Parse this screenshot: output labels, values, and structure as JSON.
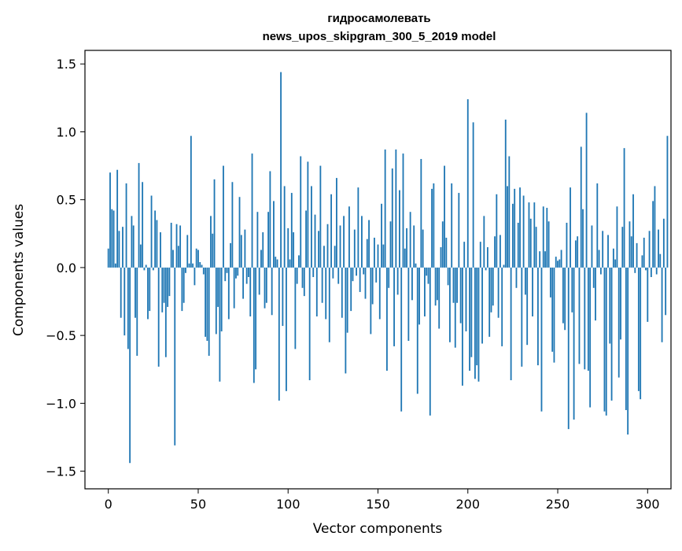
{
  "chart_data": {
    "type": "bar",
    "title_line1": "гидросамолевать",
    "title_line2": "news_upos_skipgram_300_5_2019 model",
    "xlabel": "Vector components",
    "ylabel": "Components values",
    "xlim": [
      -13,
      313
    ],
    "ylim": [
      -1.63,
      1.6
    ],
    "x_ticks": [
      0,
      50,
      100,
      150,
      200,
      250,
      300
    ],
    "x_tick_labels": [
      "0",
      "50",
      "100",
      "150",
      "200",
      "250",
      "300"
    ],
    "y_ticks": [
      -1.5,
      -1.0,
      -0.5,
      0.0,
      0.5,
      1.0,
      1.5
    ],
    "y_tick_labels": [
      "−1.5",
      "−1.0",
      "−0.5",
      "0.0",
      "0.5",
      "1.0",
      "1.5"
    ],
    "bar_color": "#1f77b4",
    "grid": false,
    "values": [
      0.14,
      0.7,
      0.43,
      0.42,
      0.03,
      0.72,
      0.27,
      -0.37,
      0.3,
      -0.5,
      0.62,
      -0.6,
      -1.44,
      0.38,
      0.31,
      -0.37,
      -0.65,
      0.77,
      0.17,
      0.63,
      -0.02,
      0.02,
      -0.38,
      -0.32,
      0.53,
      -0.02,
      0.42,
      0.35,
      -0.73,
      0.26,
      -0.33,
      -0.26,
      -0.66,
      -0.29,
      -0.21,
      0.33,
      0.13,
      -1.31,
      0.32,
      0.16,
      0.31,
      -0.32,
      -0.26,
      -0.04,
      0.24,
      0.03,
      0.97,
      0.03,
      -0.13,
      0.14,
      0.13,
      0.04,
      0.02,
      -0.05,
      -0.51,
      -0.54,
      -0.65,
      0.38,
      0.25,
      0.65,
      -0.49,
      -0.29,
      -0.84,
      -0.47,
      0.75,
      -0.1,
      -0.04,
      -0.38,
      0.18,
      0.63,
      -0.3,
      -0.08,
      -0.06,
      0.52,
      0.24,
      -0.23,
      0.28,
      -0.12,
      -0.07,
      -0.36,
      0.84,
      -0.85,
      -0.75,
      0.41,
      -0.2,
      0.13,
      0.26,
      -0.3,
      -0.26,
      0.41,
      0.71,
      -0.35,
      0.49,
      0.08,
      0.06,
      -0.98,
      1.44,
      -0.43,
      0.6,
      -0.91,
      0.29,
      0.06,
      0.55,
      0.26,
      -0.6,
      -0.12,
      0.09,
      0.82,
      -0.15,
      -0.21,
      0.42,
      0.78,
      -0.83,
      0.6,
      -0.07,
      0.39,
      -0.36,
      0.27,
      0.75,
      -0.26,
      0.16,
      -0.38,
      0.32,
      -0.55,
      0.54,
      -0.08,
      0.16,
      0.66,
      -0.12,
      0.31,
      -0.37,
      0.38,
      -0.78,
      -0.48,
      0.45,
      -0.32,
      -0.1,
      0.28,
      -0.06,
      0.59,
      -0.18,
      0.38,
      -0.05,
      -0.23,
      0.21,
      0.35,
      -0.49,
      -0.27,
      0.22,
      -0.11,
      0.17,
      -0.38,
      0.47,
      0.17,
      0.87,
      -0.76,
      -0.15,
      0.34,
      0.73,
      -0.58,
      0.87,
      -0.2,
      0.57,
      -1.06,
      0.84,
      0.14,
      0.29,
      -0.54,
      0.41,
      -0.24,
      0.31,
      0.03,
      -0.93,
      -0.42,
      0.8,
      0.28,
      -0.36,
      -0.06,
      -0.12,
      -1.09,
      0.58,
      0.62,
      -0.28,
      -0.24,
      -0.45,
      0.15,
      0.34,
      0.75,
      0.22,
      -0.13,
      -0.55,
      0.62,
      -0.26,
      -0.59,
      -0.26,
      0.55,
      -0.41,
      -0.87,
      0.19,
      -0.47,
      1.24,
      -0.76,
      -0.66,
      1.07,
      -0.82,
      -0.72,
      -0.84,
      0.19,
      -0.56,
      0.38,
      -0.02,
      0.15,
      -0.51,
      -0.33,
      -0.28,
      0.23,
      0.54,
      -0.37,
      0.24,
      -0.58,
      0.02,
      1.09,
      0.6,
      0.82,
      -0.83,
      0.47,
      0.58,
      -0.15,
      0.33,
      0.59,
      -0.73,
      0.53,
      -0.2,
      -0.57,
      0.48,
      0.36,
      -0.36,
      0.48,
      0.3,
      -0.72,
      0.12,
      -1.06,
      0.45,
      0.12,
      0.44,
      0.34,
      -0.22,
      -0.62,
      -0.7,
      0.08,
      0.05,
      0.06,
      0.13,
      -0.41,
      -0.46,
      0.33,
      -1.19,
      0.59,
      -0.33,
      -1.12,
      0.2,
      0.23,
      -0.71,
      0.89,
      0.43,
      -0.75,
      1.14,
      -0.76,
      -1.03,
      0.31,
      -0.15,
      -0.39,
      0.62,
      0.13,
      -0.05,
      0.27,
      -1.06,
      -1.09,
      0.24,
      -0.56,
      -0.98,
      0.14,
      0.06,
      0.45,
      -0.81,
      -0.53,
      0.3,
      0.88,
      -1.05,
      -1.23,
      0.34,
      0.23,
      0.54,
      -0.04,
      0.18,
      -0.91,
      -0.97,
      0.09,
      0.22,
      -0.02,
      -0.4,
      0.27,
      -0.07,
      0.49,
      0.6,
      -0.05,
      0.28,
      0.1,
      -0.55,
      0.36,
      -0.35,
      0.97
    ]
  }
}
